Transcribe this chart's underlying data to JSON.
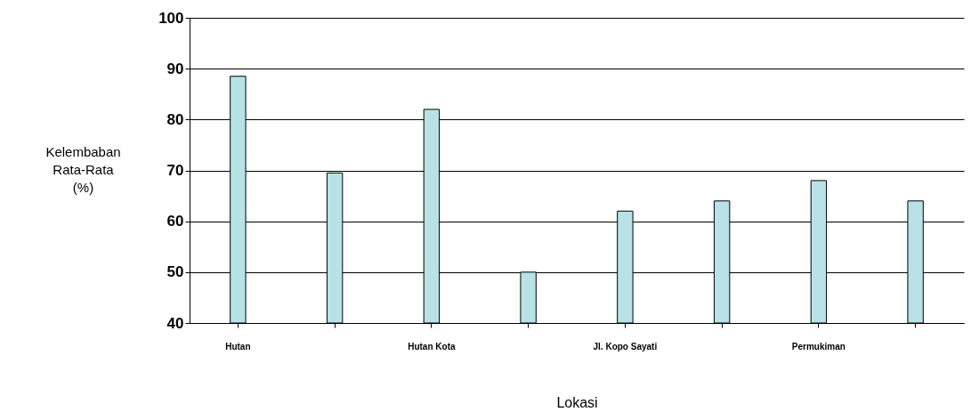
{
  "chart_data": {
    "type": "bar",
    "xlabel": "Lokasi",
    "ylabel": "Kelembaban Rata-Rata (%)",
    "categories": [
      "Hutan",
      null,
      "Hutan Kota",
      null,
      "Jl. Kopo Sayati",
      null,
      "Permukiman",
      null
    ],
    "series": [
      {
        "color": "#b9e2e6",
        "values": [
          88.5,
          69.5,
          82,
          50,
          62,
          64,
          68,
          64
        ]
      }
    ],
    "ylim": [
      40,
      100
    ],
    "yticks": [
      40,
      50,
      60,
      70,
      80,
      90,
      100
    ],
    "grid": "y"
  }
}
